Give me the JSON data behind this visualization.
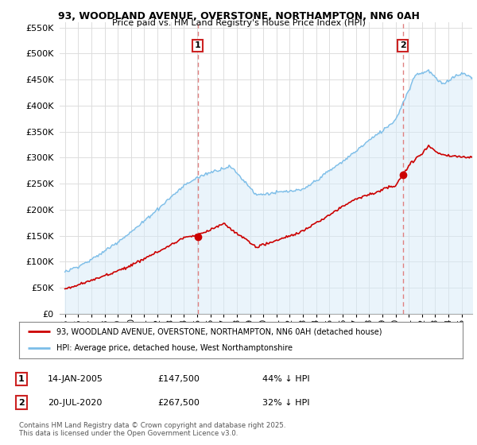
{
  "title_line1": "93, WOODLAND AVENUE, OVERSTONE, NORTHAMPTON, NN6 0AH",
  "title_line2": "Price paid vs. HM Land Registry's House Price Index (HPI)",
  "legend_line1": "93, WOODLAND AVENUE, OVERSTONE, NORTHAMPTON, NN6 0AH (detached house)",
  "legend_line2": "HPI: Average price, detached house, West Northamptonshire",
  "footer": "Contains HM Land Registry data © Crown copyright and database right 2025.\nThis data is licensed under the Open Government Licence v3.0.",
  "annotation1_date": "14-JAN-2005",
  "annotation1_price": "£147,500",
  "annotation1_hpi": "44% ↓ HPI",
  "annotation2_date": "20-JUL-2020",
  "annotation2_price": "£267,500",
  "annotation2_hpi": "32% ↓ HPI",
  "hpi_color": "#7bbde8",
  "hpi_fill_color": "#d6eaf8",
  "price_color": "#cc0000",
  "vline_color": "#e08080",
  "box_color": "#cc2222",
  "ylim_max": 560000,
  "ytick_step": 50000,
  "background_color": "#ffffff",
  "grid_color": "#dddddd",
  "sale1_year": 2005.038,
  "sale1_price": 147500,
  "sale2_year": 2020.548,
  "sale2_price": 267500
}
